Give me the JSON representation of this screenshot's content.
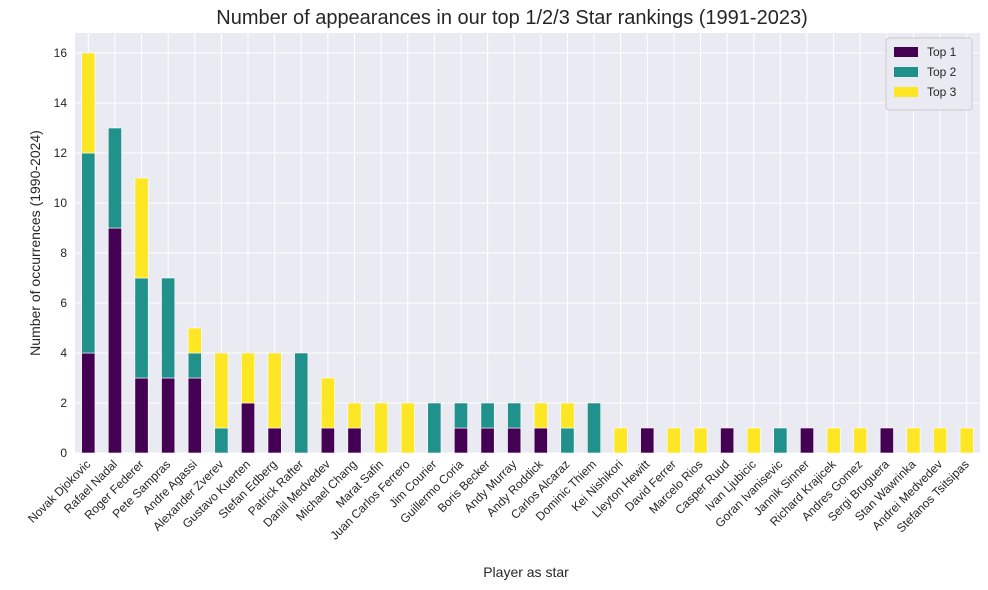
{
  "chart_data": {
    "type": "bar",
    "stacked": true,
    "title": "Number of appearances in our top 1/2/3 Star rankings (1991-2023)",
    "xlabel": "Player as star",
    "ylabel": "Number of occurrences (1990-2024)",
    "ylim": [
      0,
      16.8
    ],
    "yticks": [
      0,
      2,
      4,
      6,
      8,
      10,
      12,
      14,
      16
    ],
    "grid": true,
    "legend_position": "top-right",
    "categories": [
      "Novak Djokovic",
      "Rafael Nadal",
      "Roger Federer",
      "Pete Sampras",
      "Andre Agassi",
      "Alexander Zverev",
      "Gustavo Kuerten",
      "Stefan Edberg",
      "Patrick Rafter",
      "Daniil Medvedev",
      "Michael Chang",
      "Marat Safin",
      "Juan Carlos Ferrero",
      "Jim Courier",
      "Guillermo Coria",
      "Boris Becker",
      "Andy Murray",
      "Andy Roddick",
      "Carlos Alcaraz",
      "Dominic Thiem",
      "Kei Nishikori",
      "Lleyton Hewitt",
      "David Ferrer",
      "Marcelo Rios",
      "Casper Ruud",
      "Ivan Ljubicic",
      "Goran Ivanisevic",
      "Jannik Sinner",
      "Richard Krajicek",
      "Andres Gomez",
      "Sergi Bruguera",
      "Stan Wawrinka",
      "Andrei Medvedev",
      "Stefanos Tsitsipas"
    ],
    "series": [
      {
        "name": "Top 1",
        "color": "#440154",
        "values": [
          4,
          9,
          3,
          3,
          3,
          0,
          2,
          1,
          0,
          1,
          1,
          0,
          0,
          0,
          1,
          1,
          1,
          1,
          0,
          0,
          0,
          1,
          0,
          0,
          1,
          0,
          0,
          1,
          0,
          0,
          1,
          0,
          0,
          0
        ]
      },
      {
        "name": "Top 2",
        "color": "#21918c",
        "values": [
          8,
          4,
          4,
          4,
          1,
          1,
          0,
          0,
          4,
          0,
          0,
          0,
          0,
          2,
          1,
          1,
          1,
          0,
          1,
          2,
          0,
          0,
          0,
          0,
          0,
          0,
          1,
          0,
          0,
          0,
          0,
          0,
          0,
          0
        ]
      },
      {
        "name": "Top 3",
        "color": "#fde725",
        "values": [
          4,
          0,
          4,
          0,
          1,
          3,
          2,
          3,
          0,
          2,
          1,
          2,
          2,
          0,
          0,
          0,
          0,
          1,
          1,
          0,
          1,
          0,
          1,
          1,
          0,
          1,
          0,
          0,
          1,
          1,
          0,
          1,
          1,
          1
        ]
      }
    ]
  },
  "colors": {
    "plot_background": "#eaeaf2",
    "grid": "#ffffff",
    "text": "#262626"
  }
}
